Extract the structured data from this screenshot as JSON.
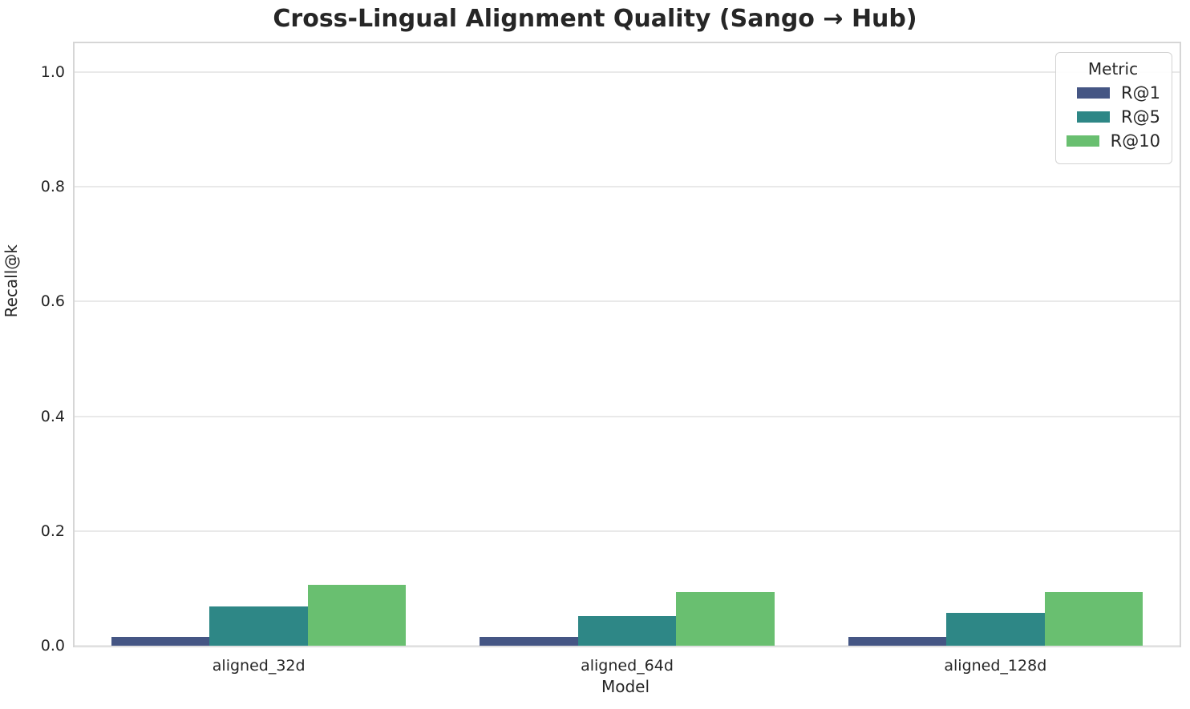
{
  "chart_data": {
    "type": "bar",
    "title": "Cross-Lingual Alignment Quality (Sango → Hub)",
    "xlabel": "Model",
    "ylabel": "Recall@k",
    "ylim": [
      0,
      1.05
    ],
    "yticks": [
      0.0,
      0.2,
      0.4,
      0.6,
      0.8,
      1.0
    ],
    "ytick_labels": [
      "0.0",
      "0.2",
      "0.4",
      "0.6",
      "0.8",
      "1.0"
    ],
    "categories": [
      "aligned_32d",
      "aligned_64d",
      "aligned_128d"
    ],
    "series": [
      {
        "name": "R@1",
        "color": "#455684",
        "values": [
          0.015,
          0.015,
          0.015
        ]
      },
      {
        "name": "R@5",
        "color": "#2e8786",
        "values": [
          0.069,
          0.051,
          0.057
        ]
      },
      {
        "name": "R@10",
        "color": "#69bf70",
        "values": [
          0.106,
          0.094,
          0.094
        ]
      }
    ],
    "legend": {
      "title": "Metric",
      "position": "upper right"
    },
    "grid": true,
    "group_bar_fraction": 0.8
  },
  "colors": {
    "text": "#262626",
    "grid": "#e9e9e9",
    "spine": "#d6d6d6",
    "background": "#ffffff"
  }
}
